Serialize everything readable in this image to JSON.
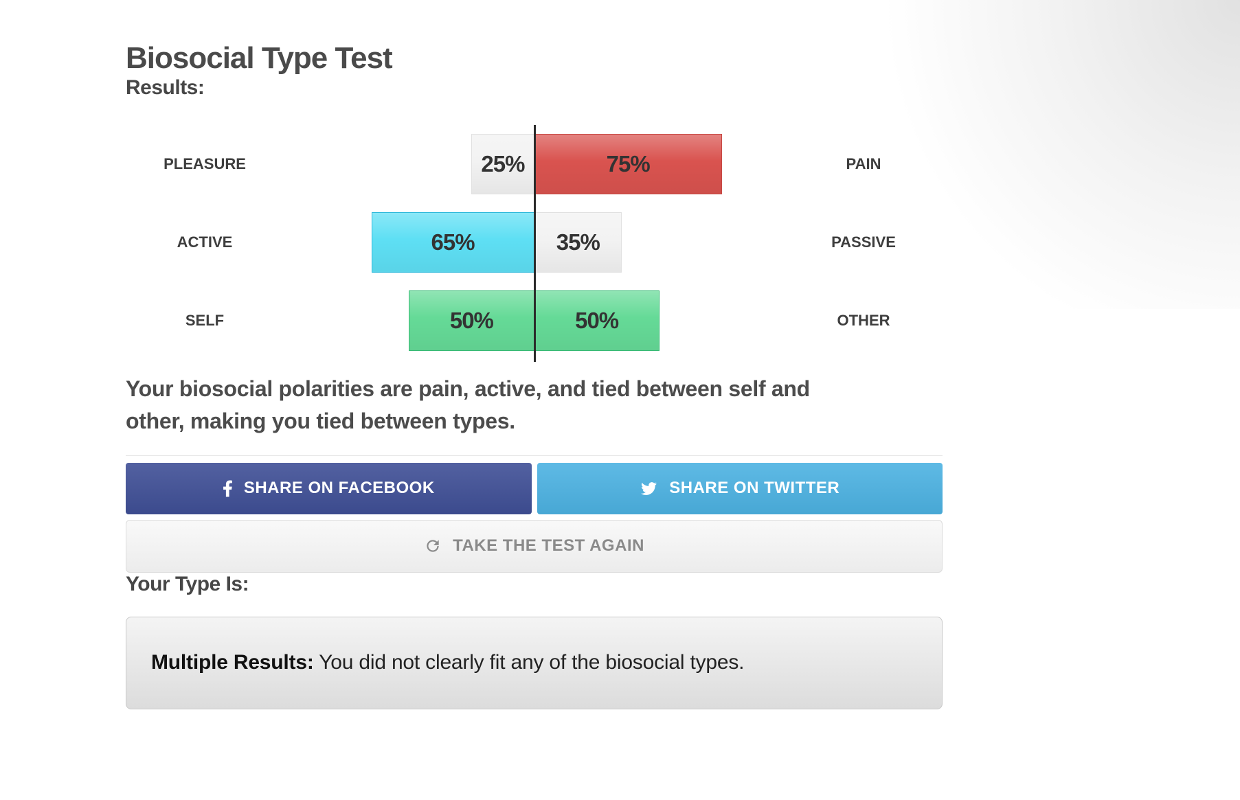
{
  "page": {
    "title": "Biosocial Type Test",
    "results_label": "Results:",
    "summary": "Your biosocial polarities are pain, active, and tied between self and\nother, making you tied between types.",
    "your_type_label": "Your Type Is:",
    "result_box": {
      "label": "Multiple Results:",
      "text": " You did not clearly fit any of the biosocial types."
    }
  },
  "chart_data": {
    "type": "bar",
    "subtype": "diverging-horizontal-pairs",
    "axis": {
      "center_value": 0,
      "side_max_percent": 100,
      "gridlines": false,
      "center_axis_color": "#2b2b2b"
    },
    "rows": [
      {
        "left": {
          "label": "PLEASURE",
          "value": 25,
          "text": "25%",
          "color": "#f2f2f2",
          "border": "#e1e1e1"
        },
        "right": {
          "label": "PAIN",
          "value": 75,
          "text": "75%",
          "color": "#d9534f",
          "border": "#c64742"
        },
        "winner": "PAIN"
      },
      {
        "left": {
          "label": "ACTIVE",
          "value": 65,
          "text": "65%",
          "color": "#5edff4",
          "border": "#2bb8da"
        },
        "right": {
          "label": "PASSIVE",
          "value": 35,
          "text": "35%",
          "color": "#f2f2f2",
          "border": "#e1e1e1"
        },
        "winner": "ACTIVE"
      },
      {
        "left": {
          "label": "SELF",
          "value": 50,
          "text": "50%",
          "color": "#65da97",
          "border": "#36b973"
        },
        "right": {
          "label": "OTHER",
          "value": 50,
          "text": "50%",
          "color": "#65da97",
          "border": "#36b973"
        },
        "winner": "tie"
      }
    ]
  },
  "buttons": {
    "facebook": {
      "label": "SHARE ON FACEBOOK",
      "color": "#3f4f96",
      "icon": "facebook-icon"
    },
    "twitter": {
      "label": "SHARE ON TWITTER",
      "color": "#4cb2e2",
      "icon": "twitter-icon"
    },
    "retake": {
      "label": "TAKE THE TEST AGAIN",
      "icon": "refresh-icon"
    }
  }
}
